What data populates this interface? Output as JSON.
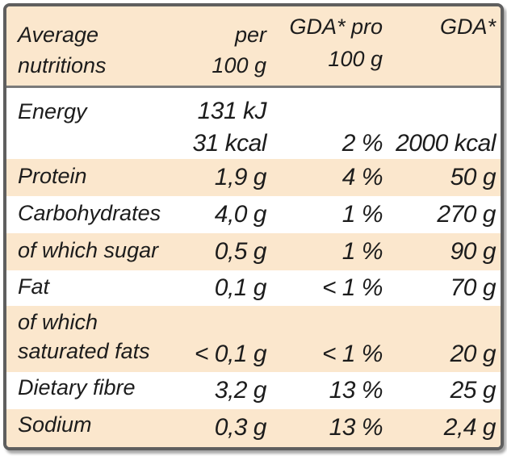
{
  "header": {
    "label_line1": "Average",
    "label_line2": "nutritions",
    "col1_line1": "per",
    "col1_line2": "100 g",
    "col2_line1": "GDA* pro",
    "col2_line2": "100 g",
    "col3_line1": "GDA*"
  },
  "rows": [
    {
      "label": "Energy",
      "per100_kj": "131 kJ",
      "per100": "31 kcal",
      "gda_pct": "2 %",
      "gda": "2000 kcal"
    },
    {
      "label": "Protein",
      "per100": "1,9 g",
      "gda_pct": "4 %",
      "gda": "50 g"
    },
    {
      "label": "Carbohydrates",
      "per100": "4,0 g",
      "gda_pct": "1 %",
      "gda": "270 g"
    },
    {
      "label": "of which sugar",
      "per100": "0,5 g",
      "gda_pct": "1 %",
      "gda": "90 g"
    },
    {
      "label": "Fat",
      "per100": "0,1 g",
      "gda_pct": "< 1 %",
      "gda": "70 g"
    },
    {
      "label_line1": "of which",
      "label_line2": "saturated fats",
      "per100": "< 0,1 g",
      "gda_pct": "< 1 %",
      "gda": "20 g"
    },
    {
      "label": "Dietary fibre",
      "per100": "3,2 g",
      "gda_pct": "13 %",
      "gda": "25 g"
    },
    {
      "label": "Sodium",
      "per100": "0,3 g",
      "gda_pct": "13 %",
      "gda": "2,4 g"
    }
  ],
  "colors": {
    "band": "#fbe7cd",
    "border": "#5f5f5f",
    "text": "#1c1c1c"
  }
}
